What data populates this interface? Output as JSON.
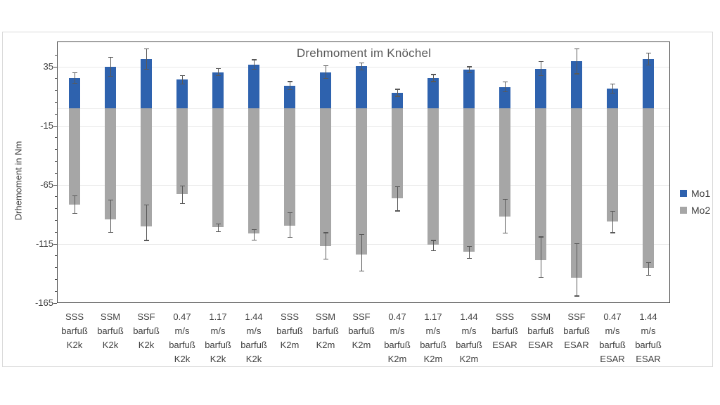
{
  "chart_data": {
    "type": "bar",
    "title": "Drehmoment im Knöchel",
    "ylabel": "Drhemoment in Nm",
    "ylim": [
      -165,
      56
    ],
    "yticks": [
      35,
      -15,
      -65,
      -115,
      -165
    ],
    "minor_tick_step": 10,
    "grid": true,
    "zero_line": true,
    "legend_position": "right",
    "bar_stacking": "stacked-from-zero",
    "categories": [
      [
        "SSS",
        "barfuß",
        "K2k"
      ],
      [
        "SSM",
        "barfuß",
        "K2k"
      ],
      [
        "SSF",
        "barfuß",
        "K2k"
      ],
      [
        "0.47",
        "m/s",
        "barfuß",
        "K2k"
      ],
      [
        "1.17",
        "m/s",
        "barfuß",
        "K2k"
      ],
      [
        "1.44",
        "m/s",
        "barfuß",
        "K2k"
      ],
      [
        "SSS",
        "barfuß",
        "K2m"
      ],
      [
        "SSM",
        "barfuß",
        "K2m"
      ],
      [
        "SSF",
        "barfuß",
        "K2m"
      ],
      [
        "0.47",
        "m/s",
        "barfuß",
        "K2m"
      ],
      [
        "1.17",
        "m/s",
        "barfuß",
        "K2m"
      ],
      [
        "1.44",
        "m/s",
        "barfuß",
        "K2m"
      ],
      [
        "SSS",
        "barfuß",
        "ESAR"
      ],
      [
        "SSM",
        "barfuß",
        "ESAR"
      ],
      [
        "SSF",
        "barfuß",
        "ESAR"
      ],
      [
        "0.47",
        "m/s",
        "barfuß",
        "ESAR"
      ],
      [
        "1.44",
        "m/s",
        "barfuß",
        "ESAR"
      ]
    ],
    "series": [
      {
        "name": "Mo1",
        "color": "#2E62AE",
        "values": [
          25.5,
          35,
          41.5,
          24,
          30.5,
          37,
          19,
          30.5,
          35.5,
          13,
          25.5,
          32.5,
          18,
          33.5,
          39.5,
          16.5,
          41.5
        ],
        "err_up": [
          4.5,
          8,
          8.5,
          3.5,
          3,
          4,
          3.5,
          5.5,
          3,
          3,
          3,
          2.5,
          4,
          6,
          10.5,
          4,
          5
        ],
        "err_down": [
          4.5,
          8,
          8.5,
          3.5,
          3,
          4,
          3.5,
          5.5,
          3,
          3,
          3,
          2.5,
          4,
          6,
          10.5,
          4,
          5
        ]
      },
      {
        "name": "Mo2",
        "color": "#A6A6A6",
        "values": [
          -81.5,
          -94,
          -100,
          -73,
          -100.5,
          -106,
          -99.5,
          -117,
          -124,
          -76.5,
          -115.5,
          -121.5,
          -91.5,
          -128.5,
          -143.5,
          -96,
          -135.5
        ],
        "err_up": [
          7.5,
          16,
          18,
          7,
          2.5,
          3,
          11,
          11.5,
          17,
          10,
          3.5,
          4.5,
          14.5,
          19.5,
          29,
          8.5,
          4.5
        ],
        "err_down": [
          7.5,
          11,
          12,
          8,
          4,
          5.5,
          10,
          11,
          14,
          10.5,
          5,
          5.5,
          14.5,
          15,
          15.5,
          9.5,
          6
        ]
      }
    ]
  },
  "colors": {
    "background": "#FFFFFF",
    "chart_border": "#D9D9D9",
    "plot_border": "#4D4D4D",
    "gridline": "#E8E8E8",
    "zero_line": "#ECECEC",
    "error_bar": "#595959",
    "axis_text": "#404040",
    "title_text": "#595959"
  }
}
